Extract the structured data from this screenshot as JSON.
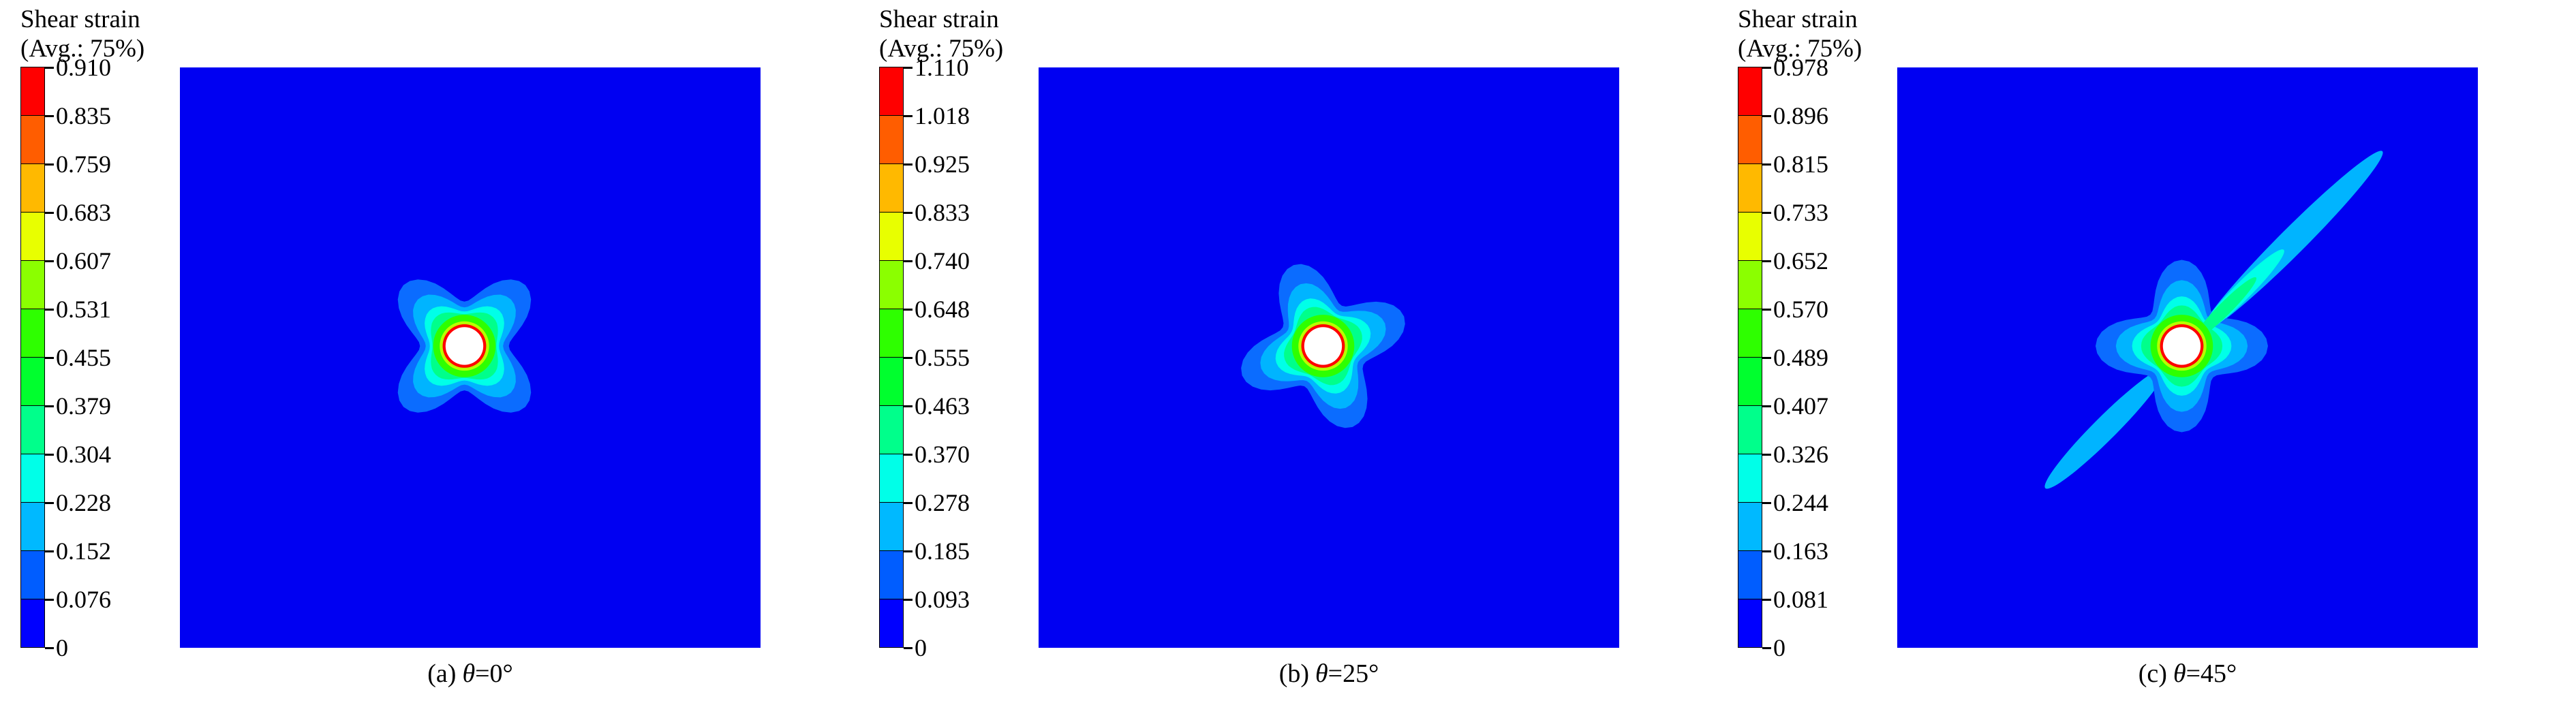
{
  "figure": {
    "panels": [
      {
        "legend_title_line1": "Shear strain",
        "legend_title_line2": "(Avg.: 75%)",
        "tick_labels": [
          "0.910",
          "0.835",
          "0.759",
          "0.683",
          "0.607",
          "0.531",
          "0.455",
          "0.379",
          "0.304",
          "0.228",
          "0.152",
          "0.076",
          "0"
        ],
        "caption": {
          "index": "(a)",
          "symbol": "θ",
          "suffix": "=0°"
        },
        "theta_deg": 0,
        "diagonal_streaks": false
      },
      {
        "legend_title_line1": "Shear strain",
        "legend_title_line2": "(Avg.: 75%)",
        "tick_labels": [
          "1.110",
          "1.018",
          "0.925",
          "0.833",
          "0.740",
          "0.648",
          "0.555",
          "0.463",
          "0.370",
          "0.278",
          "0.185",
          "0.093",
          "0"
        ],
        "caption": {
          "index": "(b)",
          "symbol": "θ",
          "suffix": "=25°"
        },
        "theta_deg": 25,
        "diagonal_streaks": false
      },
      {
        "legend_title_line1": "Shear strain",
        "legend_title_line2": "(Avg.: 75%)",
        "tick_labels": [
          "0.978",
          "0.896",
          "0.815",
          "0.733",
          "0.652",
          "0.570",
          "0.489",
          "0.407",
          "0.326",
          "0.244",
          "0.163",
          "0.081",
          "0"
        ],
        "caption": {
          "index": "(c)",
          "symbol": "θ",
          "suffix": "=45°"
        },
        "theta_deg": 45,
        "diagonal_streaks": true
      }
    ],
    "colors": {
      "spectrum_top_to_bottom": [
        "#ff0000",
        "#ff5d00",
        "#ffb900",
        "#e8ff00",
        "#8bff00",
        "#2eff00",
        "#00ff2e",
        "#00ff8b",
        "#00ffe8",
        "#00b9ff",
        "#005dff",
        "#0000ff"
      ],
      "field": "#0000f2",
      "halo_outer": "#0b6cff",
      "halo_inner": "#00b4ff",
      "cyan_zone": "#00ffe8",
      "spring_zone": "#00ff8b",
      "green_ring": "#2eff00",
      "yellow_ring": "#b9ff00",
      "red_ring": "#ff0000",
      "hole": "#ffffff"
    }
  },
  "chart_data": [
    {
      "type": "heatmap",
      "title": "Shear strain (Avg.: 75%)",
      "panel_label": "(a) θ=0°",
      "colorbar_ticks": [
        0.91,
        0.835,
        0.759,
        0.683,
        0.607,
        0.531,
        0.455,
        0.379,
        0.304,
        0.228,
        0.152,
        0.076,
        0
      ],
      "value_range": [
        0,
        0.91
      ],
      "legend_position": "left",
      "colormap": "rainbow blue-to-red, 12 bands"
    },
    {
      "type": "heatmap",
      "title": "Shear strain (Avg.: 75%)",
      "panel_label": "(b) θ=25°",
      "colorbar_ticks": [
        1.11,
        1.018,
        0.925,
        0.833,
        0.74,
        0.648,
        0.555,
        0.463,
        0.37,
        0.278,
        0.185,
        0.093,
        0
      ],
      "value_range": [
        0,
        1.11
      ],
      "legend_position": "left",
      "colormap": "rainbow blue-to-red, 12 bands"
    },
    {
      "type": "heatmap",
      "title": "Shear strain (Avg.: 75%)",
      "panel_label": "(c) θ=45°",
      "colorbar_ticks": [
        0.978,
        0.896,
        0.815,
        0.733,
        0.652,
        0.57,
        0.489,
        0.407,
        0.326,
        0.244,
        0.163,
        0.081,
        0
      ],
      "value_range": [
        0,
        0.978
      ],
      "legend_position": "left",
      "colormap": "rainbow blue-to-red, 12 bands"
    }
  ]
}
